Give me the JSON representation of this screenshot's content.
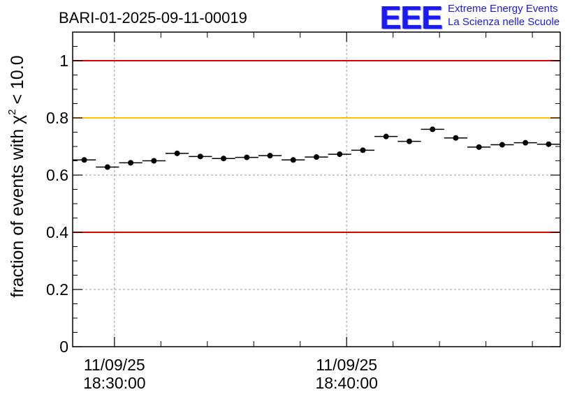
{
  "chart_data": {
    "type": "scatter",
    "title": "BARI-01-2025-09-11-00019",
    "ylabel": "fraction of events with χ² < 10.0",
    "ylabel_parts": {
      "pre": "fraction of events with χ",
      "sup": "2",
      "post": " < 10.0"
    },
    "xlabel": "",
    "ylim": [
      0,
      1.1
    ],
    "xlim_minutes": [
      0,
      21
    ],
    "x_major_ticks": [
      {
        "minute": 1.8,
        "date": "11/09/25",
        "time": "18:30:00"
      },
      {
        "minute": 11.8,
        "date": "11/09/25",
        "time": "18:40:00"
      }
    ],
    "y_ticks": [
      {
        "value": 0,
        "label": "0"
      },
      {
        "value": 0.2,
        "label": "0.2"
      },
      {
        "value": 0.4,
        "label": "0.4"
      },
      {
        "value": 0.6,
        "label": "0.6"
      },
      {
        "value": 0.8,
        "label": "0.8"
      },
      {
        "value": 1,
        "label": "1"
      }
    ],
    "reference_lines": [
      {
        "value": 1.0,
        "color": "#e00000"
      },
      {
        "value": 0.8,
        "color": "#ffc000"
      },
      {
        "value": 0.4,
        "color": "#e00000"
      }
    ],
    "bin_width_minutes": 1,
    "series": [
      {
        "name": "fraction",
        "x": [
          0.5,
          1.5,
          2.5,
          3.5,
          4.5,
          5.5,
          6.5,
          7.5,
          8.5,
          9.5,
          10.5,
          11.5,
          12.5,
          13.5,
          14.5,
          15.5,
          16.5,
          17.5,
          18.5,
          19.5,
          20.5
        ],
        "values": [
          0.653,
          0.628,
          0.643,
          0.65,
          0.676,
          0.665,
          0.658,
          0.662,
          0.668,
          0.653,
          0.663,
          0.673,
          0.687,
          0.735,
          0.718,
          0.76,
          0.73,
          0.698,
          0.706,
          0.713,
          0.708
        ]
      }
    ],
    "grid": true
  },
  "logo": {
    "mark": "EEE",
    "line1": "Extreme Energy Events",
    "line2": "La Scienza nelle Scuole"
  }
}
